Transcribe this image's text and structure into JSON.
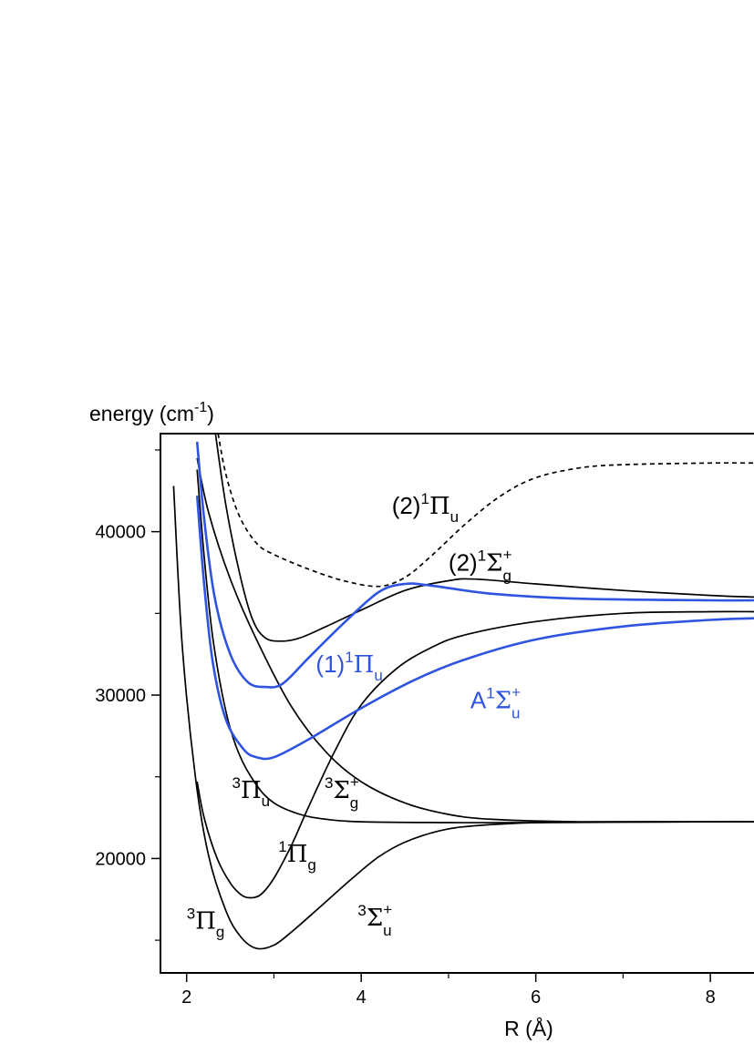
{
  "chart_data": {
    "type": "line",
    "xlabel": "R (Å)",
    "ylabel": {
      "text": "energy (cm",
      "exp": "-1",
      "close": ")"
    },
    "xlim": [
      1.7,
      8.5
    ],
    "ylim": [
      13000,
      46000
    ],
    "x_ticks": [
      2,
      4,
      6,
      8
    ],
    "x_tick_labels": [
      "2",
      "4",
      "6",
      "8"
    ],
    "y_ticks": [
      20000,
      30000,
      40000
    ],
    "y_tick_labels": [
      "20000",
      "30000",
      "40000"
    ],
    "colors": {
      "black": "#000000",
      "blue": "#2f54e0"
    },
    "series": [
      {
        "key": "3Pg",
        "color": "black",
        "style": "solid",
        "points": [
          [
            1.85,
            42800
          ],
          [
            1.95,
            33000
          ],
          [
            2.1,
            25000
          ],
          [
            2.25,
            20200
          ],
          [
            2.45,
            16800
          ],
          [
            2.62,
            15200
          ],
          [
            2.8,
            14500
          ],
          [
            3.0,
            14700
          ],
          [
            3.2,
            15500
          ],
          [
            3.5,
            16900
          ],
          [
            3.9,
            18800
          ],
          [
            4.2,
            20100
          ],
          [
            4.5,
            21000
          ],
          [
            4.9,
            21700
          ],
          [
            5.3,
            22000
          ],
          [
            6.0,
            22200
          ],
          [
            7.0,
            22250
          ],
          [
            8.0,
            22250
          ],
          [
            8.5,
            22250
          ]
        ]
      },
      {
        "key": "1Pg",
        "color": "black",
        "style": "solid",
        "points": [
          [
            2.12,
            24700
          ],
          [
            2.2,
            22500
          ],
          [
            2.35,
            20000
          ],
          [
            2.5,
            18500
          ],
          [
            2.62,
            17800
          ],
          [
            2.72,
            17600
          ],
          [
            2.85,
            17800
          ],
          [
            3.0,
            18800
          ],
          [
            3.2,
            20800
          ],
          [
            3.4,
            23200
          ],
          [
            3.7,
            26600
          ],
          [
            4.0,
            29400
          ],
          [
            4.4,
            31600
          ],
          [
            4.8,
            32900
          ],
          [
            5.2,
            33700
          ],
          [
            6.0,
            34500
          ],
          [
            7.0,
            35000
          ],
          [
            8.0,
            35100
          ],
          [
            8.5,
            35100
          ]
        ]
      },
      {
        "key": "3Pu",
        "color": "black",
        "style": "solid",
        "points": [
          [
            2.12,
            43800
          ],
          [
            2.2,
            38500
          ],
          [
            2.3,
            33500
          ],
          [
            2.45,
            29000
          ],
          [
            2.6,
            26400
          ],
          [
            2.8,
            24500
          ],
          [
            3.0,
            23400
          ],
          [
            3.3,
            22700
          ],
          [
            3.6,
            22400
          ],
          [
            4.0,
            22250
          ],
          [
            5.0,
            22200
          ],
          [
            6.0,
            22200
          ],
          [
            8.0,
            22250
          ],
          [
            8.5,
            22250
          ]
        ]
      },
      {
        "key": "3Sgp",
        "color": "black",
        "style": "solid",
        "points": [
          [
            2.12,
            44500
          ],
          [
            2.25,
            41200
          ],
          [
            2.5,
            37100
          ],
          [
            2.8,
            33400
          ],
          [
            3.2,
            29300
          ],
          [
            3.6,
            26500
          ],
          [
            4.0,
            24700
          ],
          [
            4.5,
            23400
          ],
          [
            5.0,
            22700
          ],
          [
            5.5,
            22400
          ],
          [
            6.5,
            22250
          ],
          [
            8.5,
            22250
          ]
        ]
      },
      {
        "key": "2_1Sgp",
        "color": "black",
        "style": "solid",
        "points": [
          [
            2.33,
            46000
          ],
          [
            2.45,
            41600
          ],
          [
            2.6,
            37600
          ],
          [
            2.75,
            34700
          ],
          [
            2.9,
            33500
          ],
          [
            3.1,
            33300
          ],
          [
            3.3,
            33500
          ],
          [
            3.6,
            34200
          ],
          [
            4.0,
            35200
          ],
          [
            4.5,
            36400
          ],
          [
            5.0,
            37000
          ],
          [
            5.3,
            37100
          ],
          [
            6.0,
            36800
          ],
          [
            7.0,
            36400
          ],
          [
            8.0,
            36100
          ],
          [
            8.5,
            36000
          ]
        ]
      },
      {
        "key": "2_1Pu",
        "color": "black",
        "style": "dashed",
        "points": [
          [
            2.36,
            46000
          ],
          [
            2.45,
            43500
          ],
          [
            2.6,
            41000
          ],
          [
            2.8,
            39300
          ],
          [
            3.0,
            38600
          ],
          [
            3.4,
            37700
          ],
          [
            3.8,
            37000
          ],
          [
            4.2,
            36650
          ],
          [
            4.5,
            37200
          ],
          [
            4.8,
            38500
          ],
          [
            5.2,
            40500
          ],
          [
            5.6,
            42200
          ],
          [
            6.0,
            43300
          ],
          [
            6.5,
            43900
          ],
          [
            7.0,
            44100
          ],
          [
            8.0,
            44200
          ],
          [
            8.5,
            44200
          ]
        ]
      },
      {
        "key": "1_1Pu",
        "color": "blue",
        "style": "solid",
        "points": [
          [
            2.12,
            45500
          ],
          [
            2.2,
            40800
          ],
          [
            2.32,
            36000
          ],
          [
            2.5,
            32500
          ],
          [
            2.7,
            30800
          ],
          [
            2.9,
            30500
          ],
          [
            3.1,
            30700
          ],
          [
            3.4,
            32300
          ],
          [
            3.8,
            34400
          ],
          [
            4.2,
            36300
          ],
          [
            4.5,
            36800
          ],
          [
            4.8,
            36700
          ],
          [
            5.5,
            36200
          ],
          [
            6.5,
            35900
          ],
          [
            8.0,
            35800
          ],
          [
            8.5,
            35800
          ]
        ]
      },
      {
        "key": "A1Sup",
        "color": "blue",
        "style": "solid",
        "points": [
          [
            2.12,
            42200
          ],
          [
            2.2,
            36800
          ],
          [
            2.3,
            32000
          ],
          [
            2.45,
            28500
          ],
          [
            2.65,
            26700
          ],
          [
            2.8,
            26200
          ],
          [
            3.0,
            26200
          ],
          [
            3.4,
            27300
          ],
          [
            4.0,
            29200
          ],
          [
            4.6,
            30900
          ],
          [
            5.2,
            32200
          ],
          [
            6.0,
            33400
          ],
          [
            7.0,
            34200
          ],
          [
            8.0,
            34600
          ],
          [
            8.5,
            34700
          ]
        ]
      }
    ],
    "labels": [
      {
        "key": "3Pg",
        "x": 2.0,
        "y": 15700,
        "color": "black",
        "left": "3",
        "greek": "Π",
        "right": "g",
        "right_pos": "sub"
      },
      {
        "key": "1Pg",
        "x": 3.05,
        "y": 19800,
        "color": "black",
        "left": "1",
        "greek": "Π",
        "right": "g",
        "right_pos": "sub"
      },
      {
        "key": "3Pu",
        "x": 2.52,
        "y": 23700,
        "color": "black",
        "left": "3",
        "greek": "Π",
        "right": "u",
        "right_pos": "sub"
      },
      {
        "key": "3Sgp",
        "x": 3.58,
        "y": 23700,
        "color": "black",
        "left": "3",
        "greek": "Σ",
        "right": "+",
        "right2": "g",
        "right_pos": "both"
      },
      {
        "key": "3Sup",
        "x": 3.96,
        "y": 15900,
        "color": "black",
        "left": "3",
        "greek": "Σ",
        "right": "+",
        "right2": "u",
        "right_pos": "both"
      },
      {
        "key": "2_1Sgp",
        "x": 5.0,
        "y": 37600,
        "color": "black",
        "prefix": "(2)",
        "left": "1",
        "greek": "Σ",
        "right": "+",
        "right2": "g",
        "right_pos": "both"
      },
      {
        "key": "2_1Pu",
        "x": 4.35,
        "y": 41100,
        "color": "black",
        "prefix": "(2)",
        "left": "1",
        "greek": "Π",
        "right": "u",
        "right_pos": "sub"
      },
      {
        "key": "1_1Pu",
        "x": 3.48,
        "y": 31400,
        "color": "blue",
        "prefix": "(1)",
        "left": "1",
        "greek": "Π",
        "right": "u",
        "right_pos": "sub"
      },
      {
        "key": "A1Sup",
        "x": 5.25,
        "y": 29200,
        "color": "blue",
        "prefix": "A",
        "left": "1",
        "greek": "Σ",
        "right": "+",
        "right2": "u",
        "right_pos": "both"
      }
    ]
  }
}
